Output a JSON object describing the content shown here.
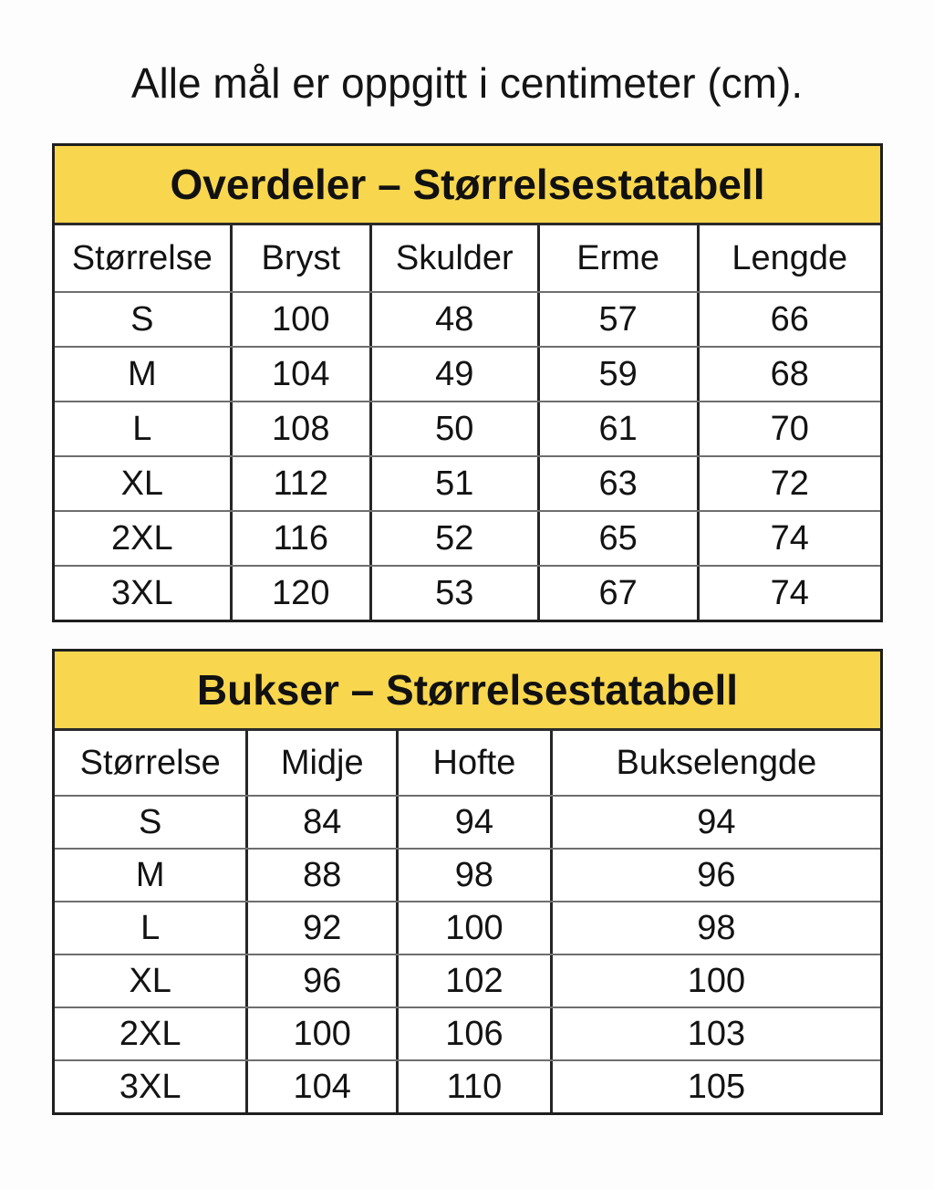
{
  "page": {
    "note": "Alle mål er oppgitt i centimeter (cm)."
  },
  "colors": {
    "accent_yellow": "#F8D64E",
    "border_dark": "#262626",
    "border_gray": "#6e6e6e",
    "text": "#141414",
    "background": "#FDFDFD"
  },
  "tables": [
    {
      "title": "Overdeler – Størrelsestatabell",
      "columns": [
        "Størrelse",
        "Bryst",
        "Skulder",
        "Erme",
        "Lengde"
      ],
      "rows": [
        [
          "S",
          "100",
          "48",
          "57",
          "66"
        ],
        [
          "M",
          "104",
          "49",
          "59",
          "68"
        ],
        [
          "L",
          "108",
          "50",
          "61",
          "70"
        ],
        [
          "XL",
          "112",
          "51",
          "63",
          "72"
        ],
        [
          "2XL",
          "116",
          "52",
          "65",
          "74"
        ],
        [
          "3XL",
          "120",
          "53",
          "67",
          "74"
        ]
      ]
    },
    {
      "title": "Bukser – Størrelsestatabell",
      "columns": [
        "Størrelse",
        "Midje",
        "Hofte",
        "Bukselengde"
      ],
      "rows": [
        [
          "S",
          "84",
          "94",
          "94"
        ],
        [
          "M",
          "88",
          "98",
          "96"
        ],
        [
          "L",
          "92",
          "100",
          "98"
        ],
        [
          "XL",
          "96",
          "102",
          "100"
        ],
        [
          "2XL",
          "100",
          "106",
          "103"
        ],
        [
          "3XL",
          "104",
          "110",
          "105"
        ]
      ]
    }
  ]
}
